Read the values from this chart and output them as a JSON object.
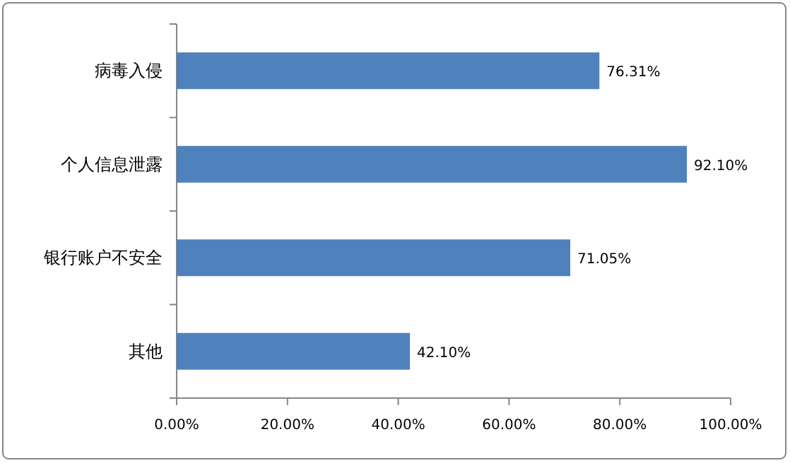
{
  "chart_data": {
    "type": "bar",
    "orientation": "horizontal",
    "categories": [
      "病毒入侵",
      "个人信息泄露",
      "银行账户不安全",
      "其他"
    ],
    "series": [
      {
        "color": "#4f81bd",
        "values": [
          76.31,
          92.1,
          71.05,
          42.1
        ],
        "value_labels": [
          "76.31%",
          "92.10%",
          "71.05%",
          "42.10%"
        ]
      }
    ],
    "xlim": [
      0,
      100
    ],
    "xticks": [
      {
        "value": 0,
        "label": "0.00%"
      },
      {
        "value": 20,
        "label": "20.00%"
      },
      {
        "value": 40,
        "label": "40.00%"
      },
      {
        "value": 60,
        "label": "60.00%"
      },
      {
        "value": 80,
        "label": "80.00%"
      },
      {
        "value": 100,
        "label": "100.00%"
      }
    ],
    "grid": false
  }
}
